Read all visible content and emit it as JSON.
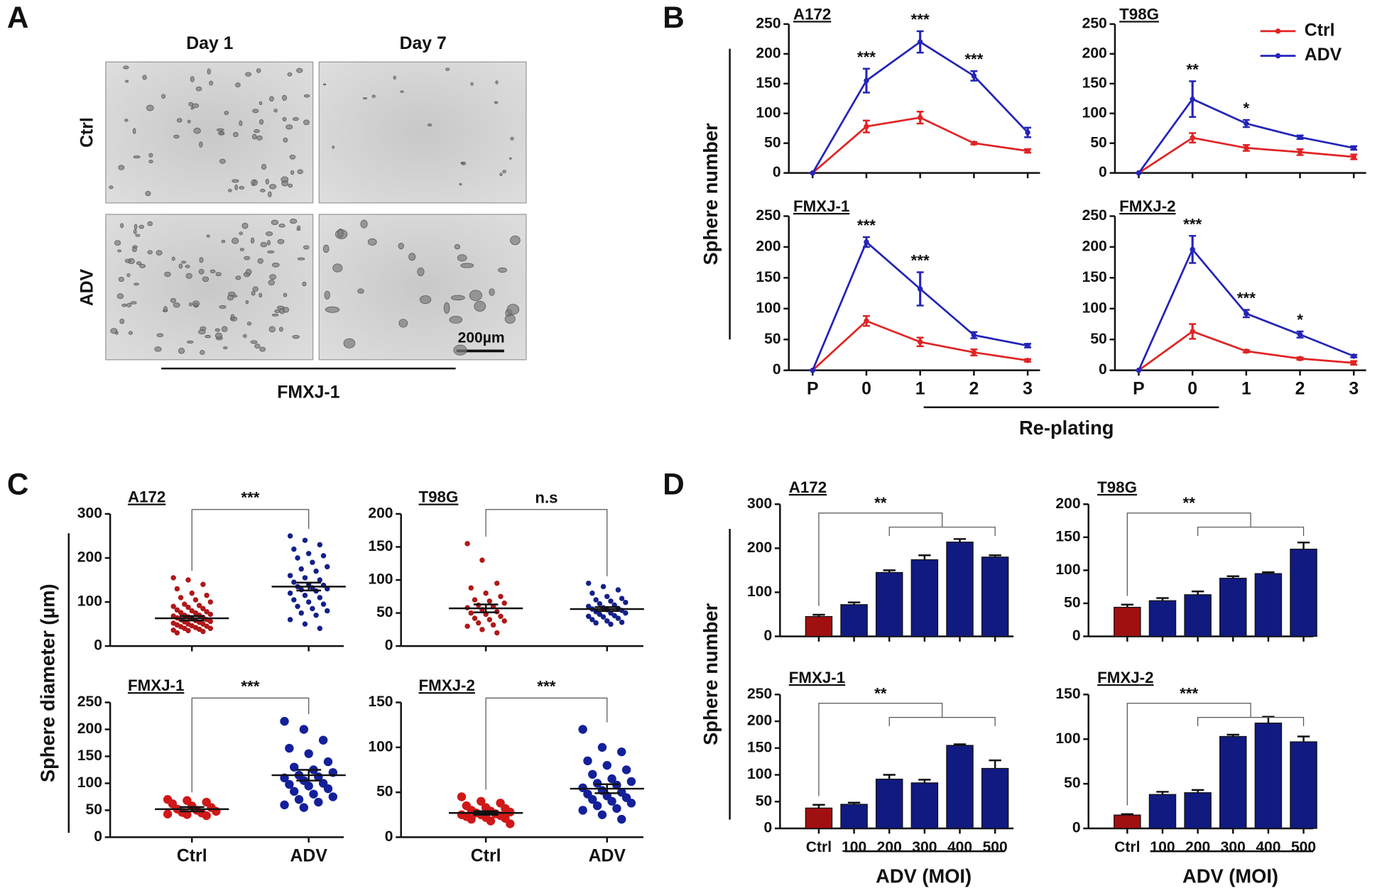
{
  "panels": {
    "A": {
      "label": "A",
      "columns": [
        "Day 1",
        "Day 7"
      ],
      "rows": [
        "Ctrl",
        "ADV"
      ],
      "scale_bar": "200µm",
      "caption": "FMXJ-1"
    },
    "B": {
      "label": "B",
      "ylabel": "Sphere number",
      "xlabel": "Re-plating"
    },
    "C": {
      "label": "C",
      "ylabel": "Sphere diameter (µm)"
    },
    "D": {
      "label": "D",
      "ylabel": "Sphere number",
      "xlabels": [
        "ADV (MOI)",
        "ADV (MOI)"
      ]
    }
  },
  "chart_data": [
    {
      "type": "line",
      "title": "A172",
      "categories": [
        null,
        null,
        null,
        null,
        null
      ],
      "series": [
        {
          "color": "#e02424",
          "values": [
            0,
            78,
            93,
            50,
            37
          ],
          "errors": [
            0,
            10,
            10,
            2,
            3
          ]
        },
        {
          "color": "#2424b8",
          "values": [
            0,
            155,
            220,
            163,
            68
          ],
          "errors": [
            0,
            20,
            18,
            8,
            8
          ]
        }
      ],
      "annotations": [
        null,
        "***",
        "***",
        "***",
        null
      ],
      "ylim": [
        0,
        250
      ],
      "yticks": [
        0,
        50,
        100,
        150,
        200,
        250
      ]
    },
    {
      "type": "line",
      "title": "T98G",
      "categories": [
        null,
        null,
        null,
        null,
        null
      ],
      "legend": "upper right",
      "series": [
        {
          "name": "Ctrl",
          "color": "#e02424",
          "values": [
            0,
            59,
            42,
            35,
            27
          ],
          "errors": [
            0,
            8,
            5,
            5,
            4
          ]
        },
        {
          "name": "ADV",
          "color": "#2424b8",
          "values": [
            0,
            124,
            83,
            60,
            42
          ],
          "errors": [
            0,
            30,
            6,
            3,
            3
          ]
        }
      ],
      "annotations": [
        null,
        "**",
        "*",
        null,
        null
      ],
      "ylim": [
        0,
        250
      ],
      "yticks": [
        0,
        50,
        100,
        150,
        200,
        250
      ]
    },
    {
      "type": "line",
      "title": "FMXJ-1",
      "categories": [
        "P",
        "0",
        "1",
        "2",
        "3"
      ],
      "series": [
        {
          "color": "#e02424",
          "values": [
            0,
            80,
            46,
            29,
            16
          ],
          "errors": [
            0,
            8,
            7,
            5,
            2
          ]
        },
        {
          "color": "#2424b8",
          "values": [
            0,
            208,
            132,
            57,
            40
          ],
          "errors": [
            0,
            8,
            27,
            5,
            3
          ]
        }
      ],
      "annotations": [
        null,
        "***",
        "***",
        null,
        null
      ],
      "ylim": [
        0,
        250
      ],
      "yticks": [
        0,
        50,
        100,
        150,
        200,
        250
      ]
    },
    {
      "type": "line",
      "title": "FMXJ-2",
      "categories": [
        "P",
        "0",
        "1",
        "2",
        "3"
      ],
      "series": [
        {
          "color": "#e02424",
          "values": [
            0,
            63,
            31,
            19,
            12
          ],
          "errors": [
            0,
            12,
            2,
            2,
            3
          ]
        },
        {
          "color": "#2424b8",
          "values": [
            0,
            196,
            92,
            58,
            23
          ],
          "errors": [
            0,
            22,
            6,
            5,
            2
          ]
        }
      ],
      "annotations": [
        null,
        "***",
        "***",
        "*",
        null
      ],
      "ylim": [
        0,
        250
      ],
      "yticks": [
        0,
        50,
        100,
        150,
        200,
        250
      ]
    },
    {
      "type": "scatter",
      "title": "A172",
      "categories": [
        null,
        null
      ],
      "significance": "***",
      "groups": [
        {
          "color": "#b01818",
          "mean": 63,
          "sem": 5,
          "values": [
            155,
            150,
            140,
            130,
            120,
            115,
            110,
            105,
            100,
            95,
            92,
            90,
            88,
            85,
            82,
            80,
            78,
            76,
            75,
            72,
            70,
            70,
            68,
            66,
            65,
            64,
            62,
            60,
            60,
            58,
            56,
            55,
            54,
            52,
            50,
            50,
            48,
            46,
            45,
            44,
            42,
            40,
            40,
            38,
            36,
            35,
            33,
            30
          ]
        },
        {
          "color": "#14208a",
          "mean": 135,
          "sem": 9,
          "values": [
            250,
            240,
            230,
            220,
            210,
            205,
            200,
            190,
            180,
            175,
            170,
            160,
            155,
            150,
            145,
            140,
            138,
            135,
            132,
            130,
            128,
            125,
            120,
            115,
            110,
            105,
            100,
            95,
            90,
            85,
            80,
            75,
            70,
            60,
            50,
            40
          ]
        }
      ],
      "ylim": [
        0,
        300
      ],
      "yticks": [
        0,
        100,
        200,
        300
      ]
    },
    {
      "type": "scatter",
      "title": "T98G",
      "categories": [
        null,
        null
      ],
      "significance": "n.s",
      "groups": [
        {
          "color": "#b01818",
          "mean": 57,
          "sem": 6,
          "values": [
            155,
            130,
            95,
            88,
            80,
            75,
            70,
            68,
            65,
            62,
            60,
            58,
            55,
            52,
            50,
            48,
            45,
            42,
            40,
            38,
            35,
            32,
            30,
            25,
            20
          ]
        },
        {
          "color": "#14208a",
          "mean": 56,
          "sem": 3,
          "values": [
            95,
            90,
            85,
            80,
            75,
            72,
            70,
            68,
            66,
            64,
            62,
            60,
            58,
            57,
            56,
            55,
            54,
            52,
            50,
            50,
            48,
            46,
            45,
            44,
            42,
            40,
            38,
            36,
            35,
            33
          ]
        }
      ],
      "ylim": [
        0,
        200
      ],
      "yticks": [
        0,
        50,
        100,
        150,
        200
      ]
    },
    {
      "type": "scatter",
      "title": "FMXJ-1",
      "categories": [
        "Ctrl",
        "ADV"
      ],
      "significance": "***",
      "groups": [
        {
          "color": "#d01818",
          "mean": 52,
          "sem": 4,
          "values": [
            70,
            68,
            65,
            62,
            58,
            55,
            52,
            50,
            48,
            46,
            45,
            43,
            42,
            40
          ]
        },
        {
          "color": "#14209a",
          "mean": 115,
          "sem": 10,
          "values": [
            215,
            200,
            180,
            165,
            155,
            140,
            130,
            125,
            120,
            115,
            112,
            110,
            105,
            100,
            98,
            95,
            90,
            85,
            80,
            75,
            70,
            65,
            60,
            55
          ]
        }
      ],
      "ylim": [
        0,
        250
      ],
      "yticks": [
        0,
        50,
        100,
        150,
        200,
        250
      ]
    },
    {
      "type": "scatter",
      "title": "FMXJ-2",
      "categories": [
        "Ctrl",
        "ADV"
      ],
      "significance": "***",
      "groups": [
        {
          "color": "#d01818",
          "mean": 27,
          "sem": 2,
          "values": [
            45,
            40,
            38,
            35,
            33,
            32,
            30,
            29,
            28,
            27,
            26,
            25,
            25,
            24,
            23,
            22,
            21,
            20,
            18,
            15
          ]
        },
        {
          "color": "#14209a",
          "mean": 54,
          "sem": 5,
          "values": [
            120,
            100,
            95,
            85,
            80,
            75,
            70,
            65,
            62,
            60,
            58,
            55,
            52,
            50,
            48,
            46,
            44,
            42,
            40,
            38,
            35,
            32,
            30,
            25,
            20
          ]
        }
      ],
      "ylim": [
        0,
        150
      ],
      "yticks": [
        0,
        50,
        100,
        150
      ]
    },
    {
      "type": "bar",
      "title": "A172",
      "categories": [
        null,
        null,
        null,
        null,
        null,
        null
      ],
      "significance": "**",
      "colors": [
        "#a01010",
        "#101a80",
        "#101a80",
        "#101a80",
        "#101a80",
        "#101a80"
      ],
      "values": [
        45,
        72,
        145,
        174,
        214,
        180
      ],
      "errors": [
        4,
        5,
        5,
        10,
        7,
        4
      ],
      "ylim": [
        0,
        300
      ],
      "yticks": [
        0,
        100,
        200,
        300
      ]
    },
    {
      "type": "bar",
      "title": "T98G",
      "categories": [
        null,
        null,
        null,
        null,
        null,
        null
      ],
      "significance": "**",
      "colors": [
        "#a01010",
        "#101a80",
        "#101a80",
        "#101a80",
        "#101a80",
        "#101a80"
      ],
      "values": [
        44,
        54,
        63,
        88,
        95,
        132
      ],
      "errors": [
        4,
        4,
        5,
        3,
        2,
        10
      ],
      "ylim": [
        0,
        200
      ],
      "yticks": [
        0,
        50,
        100,
        150,
        200
      ]
    },
    {
      "type": "bar",
      "title": "FMXJ-1",
      "categories": [
        "Ctrl",
        "100",
        "200",
        "300",
        "400",
        "500"
      ],
      "significance": "**",
      "colors": [
        "#a01010",
        "#101a80",
        "#101a80",
        "#101a80",
        "#101a80",
        "#101a80"
      ],
      "values": [
        38,
        45,
        92,
        85,
        155,
        112
      ],
      "errors": [
        6,
        3,
        8,
        6,
        2,
        15
      ],
      "ylim": [
        0,
        250
      ],
      "yticks": [
        0,
        50,
        100,
        150,
        200,
        250
      ]
    },
    {
      "type": "bar",
      "title": "FMXJ-2",
      "categories": [
        "Ctrl",
        "100",
        "200",
        "300",
        "400",
        "500"
      ],
      "significance": "***",
      "colors": [
        "#a01010",
        "#101a80",
        "#101a80",
        "#101a80",
        "#101a80",
        "#101a80"
      ],
      "values": [
        15,
        38,
        40,
        103,
        118,
        97
      ],
      "errors": [
        1,
        3,
        3,
        2,
        7,
        6
      ],
      "ylim": [
        0,
        150
      ],
      "yticks": [
        0,
        50,
        100,
        150
      ]
    }
  ]
}
